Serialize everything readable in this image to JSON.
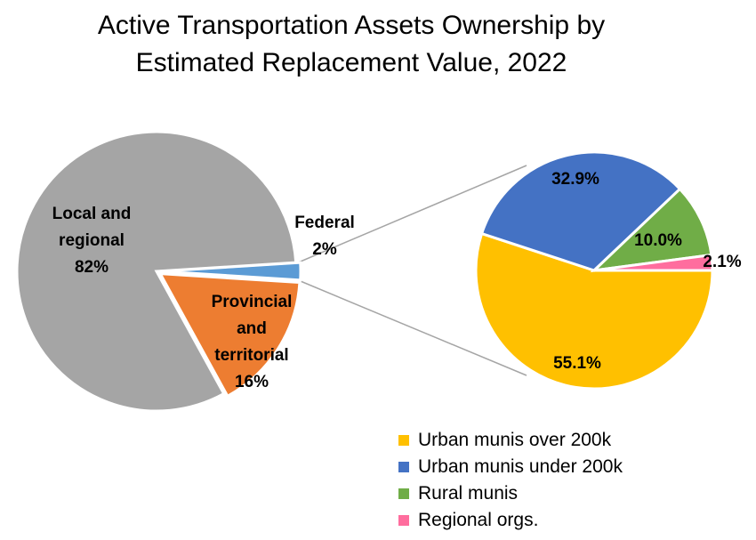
{
  "title": {
    "line1": "Active Transportation Assets Ownership by",
    "line2": "Estimated Replacement Value, 2022"
  },
  "chart_data": [
    {
      "type": "pie",
      "categories": [
        "Local and regional",
        "Federal",
        "Provincial and territorial"
      ],
      "values": [
        82,
        2,
        16
      ],
      "data_labels": [
        [
          "Local and",
          "regional",
          "82%"
        ],
        [
          "Federal",
          "2%"
        ],
        [
          "Provincial",
          "and",
          "territorial",
          "16%"
        ]
      ],
      "colors": [
        "#a5a5a5",
        "#5b9bd5",
        "#ed7d31"
      ],
      "label_placement": [
        "inside",
        "outside",
        "inside"
      ]
    },
    {
      "type": "pie",
      "categories": [
        "Urban munis over 200k",
        "Urban munis under 200k",
        "Rural munis",
        "Regional orgs."
      ],
      "values": [
        55.1,
        32.9,
        10.0,
        2.1
      ],
      "data_labels": [
        "55.1%",
        "32.9%",
        "10.0%",
        "2.1%"
      ],
      "colors": [
        "#ffc000",
        "#4472c4",
        "#70ad47",
        "#ff6d9e"
      ],
      "legend": "bottom-right",
      "breakout_of": "Local and regional"
    }
  ]
}
